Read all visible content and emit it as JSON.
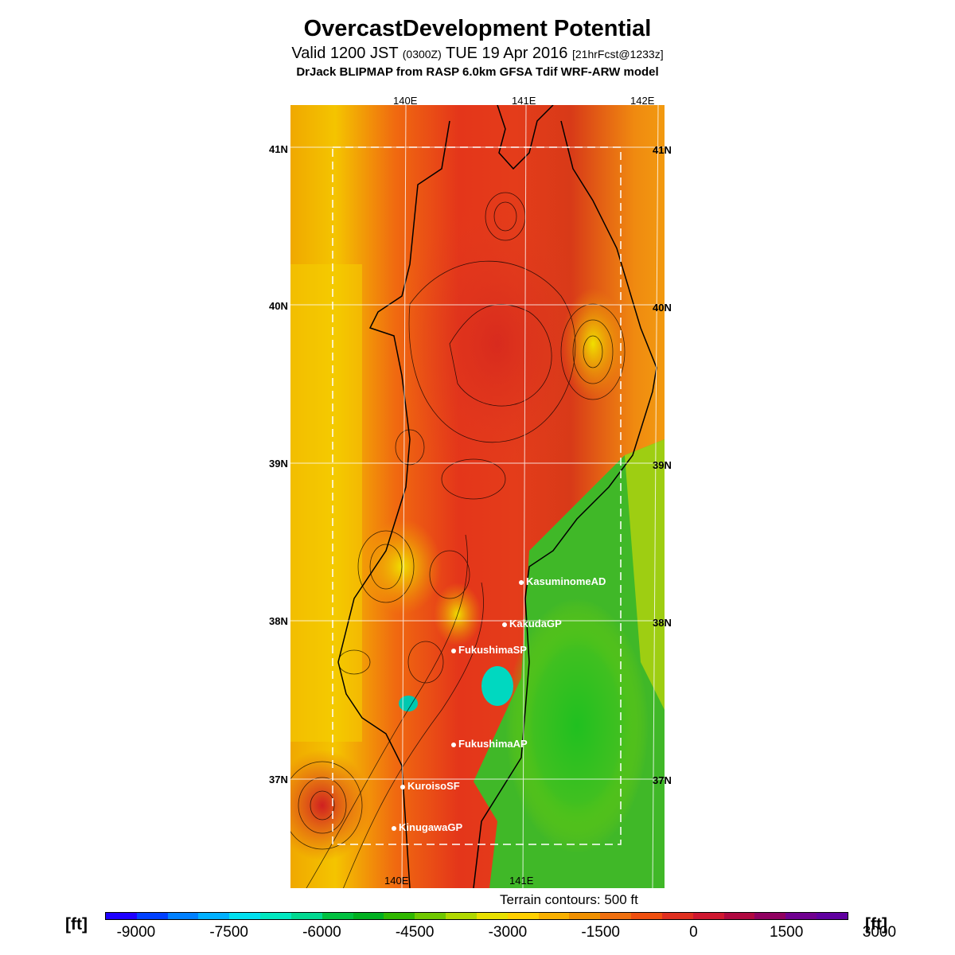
{
  "header": {
    "title": "OvercastDevelopment Potential",
    "valid_prefix": "Valid 1200 JST",
    "valid_zulu": "(0300Z)",
    "valid_date": "TUE 19 Apr 2016",
    "forecast": "[21hrFcst@1233z]",
    "model": "DrJack BLIPMAP from RASP 6.0km GFSA Tdif WRF-ARW model"
  },
  "map": {
    "lat_labels": [
      "41N",
      "40N",
      "39N",
      "38N",
      "37N"
    ],
    "lon_labels_top": [
      "140E",
      "141E",
      "142E"
    ],
    "lon_labels_bottom": [
      "140E",
      "141E"
    ],
    "stations": [
      {
        "name": "KasuminomeAD"
      },
      {
        "name": "KakudaGP"
      },
      {
        "name": "FukushimaSP"
      },
      {
        "name": "FukushimaAP"
      },
      {
        "name": "KuroisoSF"
      },
      {
        "name": "KinugawaGP"
      }
    ],
    "terrain_note": "Terrain contours: 500 ft"
  },
  "colorbar": {
    "unit": "[ft]",
    "ticks": [
      "-9000",
      "-7500",
      "-6000",
      "-4500",
      "-3000",
      "-1500",
      "0",
      "1500",
      "3000"
    ],
    "colors": [
      "#1e00ff",
      "#0040ff",
      "#0080ff",
      "#00b0ff",
      "#00e0f0",
      "#00e8c0",
      "#00d890",
      "#00c040",
      "#00b020",
      "#30b800",
      "#70c800",
      "#b0d800",
      "#e8e000",
      "#ffd000",
      "#f8b000",
      "#f09000",
      "#f07010",
      "#f05010",
      "#e03020",
      "#d01830",
      "#b00840",
      "#900060",
      "#700090",
      "#6000a0"
    ]
  }
}
